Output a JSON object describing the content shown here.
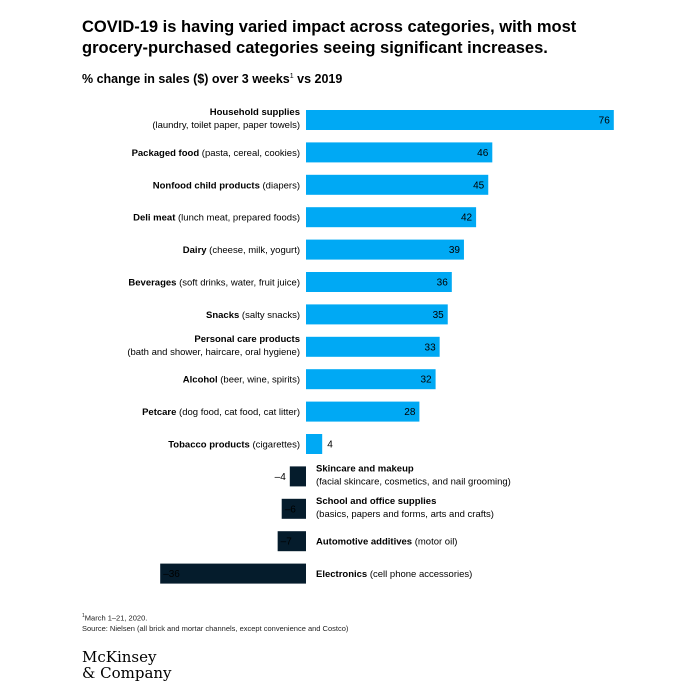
{
  "title": "COVID-19 is having varied impact across categories, with most grocery-purchased categories seeing significant increases.",
  "subtitle": {
    "text": "% change in sales ($) over 3 weeks",
    "footnote_mark": "1",
    "suffix": " vs 2019"
  },
  "colors": {
    "positive": "#00a9f4",
    "negative": "#051c2c",
    "text_on_bar_negative": "#ffffff"
  },
  "chart_data": {
    "type": "bar",
    "orientation": "horizontal",
    "categories": [
      {
        "bold": "Household supplies",
        "detail": "(laundry, toilet paper, paper towels)",
        "two_line": true
      },
      {
        "bold": "Packaged food",
        "detail": "(pasta, cereal, cookies)",
        "two_line": false
      },
      {
        "bold": "Nonfood child products",
        "detail": "(diapers)",
        "two_line": false
      },
      {
        "bold": "Deli meat",
        "detail": "(lunch meat, prepared foods)",
        "two_line": false
      },
      {
        "bold": "Dairy",
        "detail": "(cheese, milk, yogurt)",
        "two_line": false
      },
      {
        "bold": "Beverages",
        "detail": "(soft drinks, water, fruit juice)",
        "two_line": false
      },
      {
        "bold": "Snacks",
        "detail": "(salty snacks)",
        "two_line": false
      },
      {
        "bold": "Personal care products",
        "detail": "(bath and shower, haircare, oral hygiene)",
        "two_line": true
      },
      {
        "bold": "Alcohol",
        "detail": "(beer, wine, spirits)",
        "two_line": false
      },
      {
        "bold": "Petcare",
        "detail": "(dog food, cat food, cat litter)",
        "two_line": false
      },
      {
        "bold": "Tobacco products",
        "detail": "(cigarettes)",
        "two_line": false
      },
      {
        "bold": "Skincare and makeup",
        "detail": "(facial skincare, cosmetics, and nail grooming)",
        "two_line": true
      },
      {
        "bold": "School and office supplies",
        "detail": "(basics, papers and forms, arts and crafts)",
        "two_line": true
      },
      {
        "bold": "Automotive additives",
        "detail": "(motor oil)",
        "two_line": false
      },
      {
        "bold": "Electronics",
        "detail": "(cell phone accessories)",
        "two_line": false
      }
    ],
    "values": [
      76,
      46,
      45,
      42,
      39,
      36,
      35,
      33,
      32,
      28,
      4,
      -4,
      -6,
      -7,
      -36
    ],
    "value_labels": [
      "76",
      "46",
      "45",
      "42",
      "39",
      "36",
      "35",
      "33",
      "32",
      "28",
      "4",
      "–4",
      "–6",
      "–7",
      "–36"
    ],
    "xlim": [
      -36,
      76
    ]
  },
  "footnote": {
    "mark": "1",
    "line1": "March 1–21, 2020.",
    "line2": "Source: Nielsen (all brick and mortar channels, except convenience and Costco)"
  },
  "logo": {
    "line1": "McKinsey",
    "line2": "& Company"
  }
}
